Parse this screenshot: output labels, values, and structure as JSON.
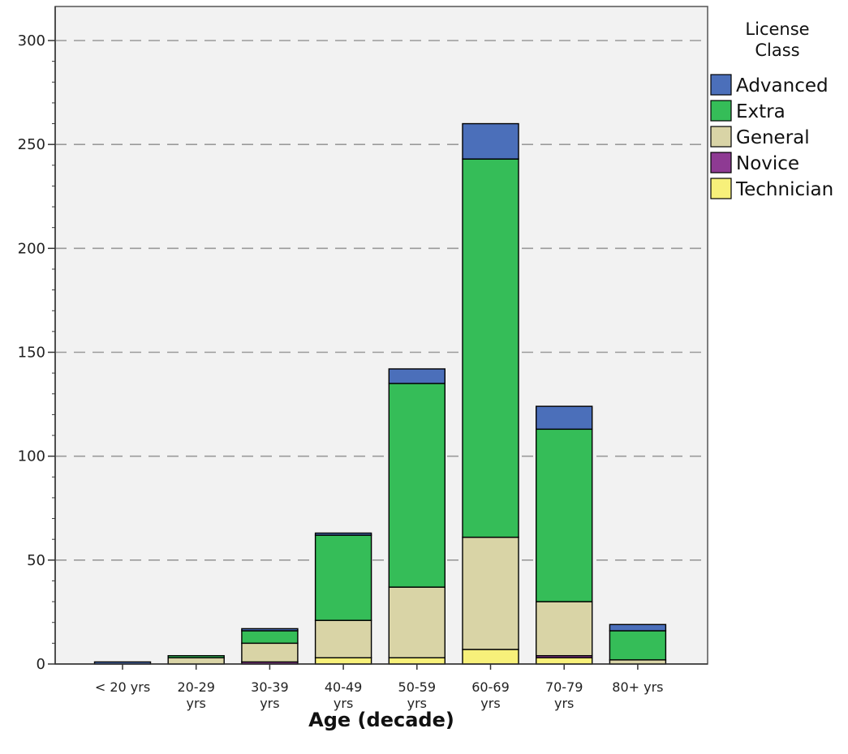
{
  "chart_data": {
    "type": "bar",
    "stacked": true,
    "title": "",
    "xlabel": "Age (decade)",
    "ylabel": "",
    "ylim": [
      0,
      310
    ],
    "yticks": [
      0,
      50,
      100,
      150,
      200,
      250,
      300
    ],
    "grid": "horizontal dashed at major ticks",
    "legend_placement": "top-right, outside plot",
    "legend_title": [
      "License",
      "Class"
    ],
    "categories": [
      [
        "< 20 yrs"
      ],
      [
        "20-29",
        "yrs"
      ],
      [
        "30-39",
        "yrs"
      ],
      [
        "40-49",
        "yrs"
      ],
      [
        "50-59",
        "yrs"
      ],
      [
        "60-69",
        "yrs"
      ],
      [
        "70-79",
        "yrs"
      ],
      [
        "80+ yrs"
      ]
    ],
    "series": [
      {
        "name": "Technician",
        "color": "#f7f07a",
        "values": [
          0,
          0,
          0,
          3,
          3,
          7,
          3,
          0
        ]
      },
      {
        "name": "Novice",
        "color": "#8e3a93",
        "values": [
          0,
          0,
          1,
          0,
          0,
          0,
          1,
          0
        ]
      },
      {
        "name": "General",
        "color": "#d9d4a6",
        "values": [
          0,
          3,
          9,
          18,
          34,
          54,
          26,
          2
        ]
      },
      {
        "name": "Extra",
        "color": "#35bd58",
        "values": [
          0,
          1,
          6,
          41,
          98,
          182,
          83,
          14
        ]
      },
      {
        "name": "Advanced",
        "color": "#4b6fba",
        "values": [
          1,
          0,
          1,
          1,
          7,
          17,
          11,
          3
        ]
      }
    ],
    "legend_order": [
      "Advanced",
      "Extra",
      "General",
      "Novice",
      "Technician"
    ],
    "colors": {
      "plot_background": "#f2f2f2",
      "grid": "#9a9a9a",
      "bar_outline": "#000000"
    }
  }
}
